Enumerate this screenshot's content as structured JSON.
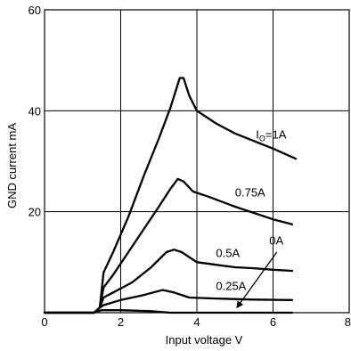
{
  "chart_data": {
    "type": "line",
    "xlabel": "Input voltage  V",
    "ylabel": "GND current mA",
    "xlim": [
      0,
      8
    ],
    "ylim": [
      0,
      60
    ],
    "xticks": [
      "0",
      "2",
      "4",
      "6",
      "8"
    ],
    "yticks": [
      "20",
      "40",
      "60"
    ],
    "grid": true,
    "series": [
      {
        "name": "IO=1A",
        "points": [
          [
            0,
            0
          ],
          [
            1.3,
            0
          ],
          [
            1.45,
            1
          ],
          [
            1.55,
            8
          ],
          [
            1.8,
            12
          ],
          [
            2.2,
            19
          ],
          [
            2.6,
            27
          ],
          [
            3.0,
            34.5
          ],
          [
            3.3,
            40.5
          ],
          [
            3.55,
            46.5
          ],
          [
            3.65,
            46.5
          ],
          [
            3.8,
            43
          ],
          [
            4.0,
            40
          ],
          [
            4.5,
            37.5
          ],
          [
            5.0,
            35.5
          ],
          [
            5.5,
            34
          ],
          [
            6.0,
            32.5
          ],
          [
            6.6,
            30.5
          ]
        ],
        "label_at": [
          5.55,
          34.5
        ]
      },
      {
        "name": "0.75A",
        "points": [
          [
            0,
            0
          ],
          [
            1.3,
            0
          ],
          [
            1.45,
            1
          ],
          [
            1.55,
            5
          ],
          [
            1.8,
            7.5
          ],
          [
            2.2,
            12
          ],
          [
            2.6,
            16.5
          ],
          [
            3.0,
            21
          ],
          [
            3.3,
            24.5
          ],
          [
            3.5,
            26.5
          ],
          [
            3.65,
            26
          ],
          [
            3.9,
            24
          ],
          [
            4.3,
            23
          ],
          [
            5.0,
            21
          ],
          [
            5.6,
            19.5
          ],
          [
            6.0,
            18.5
          ],
          [
            6.5,
            17.5
          ]
        ],
        "label_at": [
          5.0,
          23
        ]
      },
      {
        "name": "0.5A",
        "points": [
          [
            0,
            0
          ],
          [
            1.3,
            0
          ],
          [
            1.45,
            1
          ],
          [
            1.55,
            3
          ],
          [
            1.8,
            4
          ],
          [
            2.3,
            6
          ],
          [
            2.8,
            9
          ],
          [
            3.2,
            12
          ],
          [
            3.4,
            12.5
          ],
          [
            3.6,
            12
          ],
          [
            4.0,
            10
          ],
          [
            4.5,
            9.5
          ],
          [
            5.0,
            9
          ],
          [
            5.5,
            8.8
          ],
          [
            6.0,
            8.5
          ],
          [
            6.5,
            8.3
          ]
        ],
        "label_at": [
          4.5,
          11
        ]
      },
      {
        "name": "0.25A",
        "points": [
          [
            0,
            0
          ],
          [
            1.3,
            0
          ],
          [
            1.45,
            1
          ],
          [
            1.55,
            1.5
          ],
          [
            2.0,
            2.5
          ],
          [
            2.6,
            3.5
          ],
          [
            3.1,
            4.5
          ],
          [
            3.4,
            4
          ],
          [
            3.8,
            3
          ],
          [
            4.5,
            2.8
          ],
          [
            5.5,
            2.6
          ],
          [
            6.5,
            2.5
          ]
        ],
        "label_at": [
          4.5,
          4.5
        ]
      },
      {
        "name": "0A",
        "points": [
          [
            0,
            0
          ],
          [
            1.3,
            0
          ],
          [
            1.5,
            0.5
          ],
          [
            2.0,
            0.5
          ],
          [
            2.8,
            0.3
          ],
          [
            3.3,
            0
          ],
          [
            3.6,
            0
          ],
          [
            6.5,
            0
          ]
        ],
        "label_at": [
          5.9,
          13.5
        ]
      }
    ],
    "annotations": [
      {
        "text": "0A",
        "arrow_from": [
          6.1,
          12
        ],
        "arrow_to": [
          5.05,
          1
        ]
      }
    ]
  }
}
